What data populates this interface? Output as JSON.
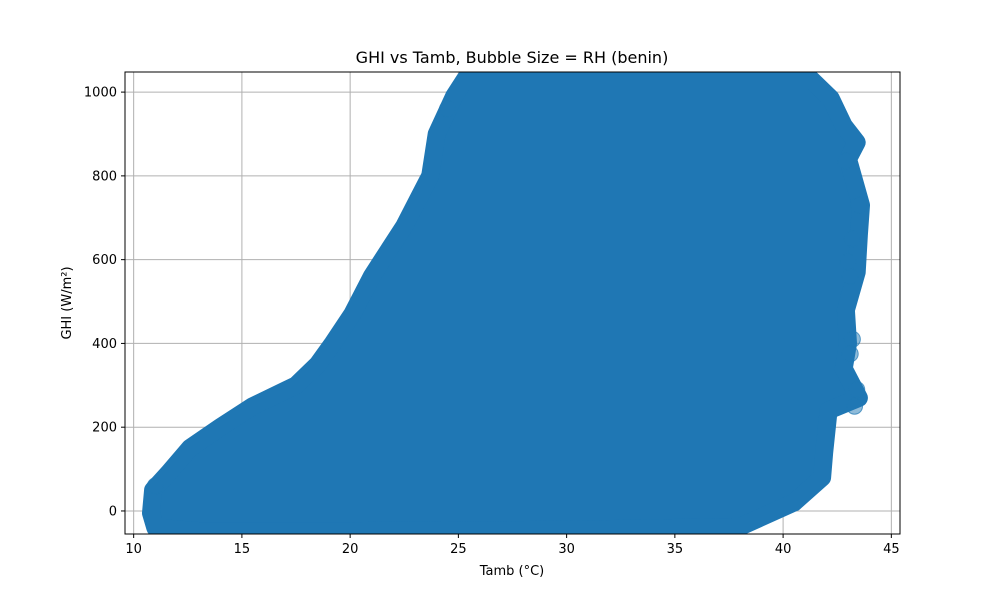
{
  "chart_data": {
    "type": "scatter",
    "title": "GHI vs Tamb, Bubble Size = RH (benin)",
    "xlabel": "Tamb (°C)",
    "ylabel": "GHI (W/m²)",
    "xlim": [
      9.6,
      45.4
    ],
    "ylim": [
      -55,
      1048
    ],
    "xticks": [
      10,
      15,
      20,
      25,
      30,
      35,
      40,
      45
    ],
    "yticks": [
      0,
      200,
      400,
      600,
      800,
      1000
    ],
    "grid": true,
    "legend": "none",
    "marker_color": "#1f77b4",
    "marker_alpha": 0.5,
    "envelope": {
      "left_edge": [
        [
          10.8,
          -5
        ],
        [
          10.9,
          50
        ],
        [
          11.6,
          90
        ],
        [
          12.6,
          150
        ],
        [
          14.0,
          200
        ],
        [
          15.5,
          250
        ],
        [
          17.5,
          300
        ],
        [
          18.5,
          350
        ],
        [
          19.2,
          400
        ],
        [
          20.1,
          470
        ],
        [
          21.0,
          560
        ],
        [
          21.5,
          600
        ],
        [
          22.5,
          680
        ],
        [
          23.2,
          750
        ],
        [
          23.7,
          800
        ],
        [
          24.0,
          900
        ],
        [
          24.8,
          990
        ],
        [
          25.3,
          1030
        ]
      ],
      "right_edge": [
        [
          41.3,
          1030
        ],
        [
          42.2,
          985
        ],
        [
          42.8,
          920
        ],
        [
          43.4,
          880
        ],
        [
          43.0,
          840
        ],
        [
          43.6,
          730
        ],
        [
          43.5,
          660
        ],
        [
          43.4,
          570
        ],
        [
          42.9,
          480
        ],
        [
          43.0,
          400
        ],
        [
          42.8,
          340
        ],
        [
          43.5,
          270
        ],
        [
          42.1,
          240
        ],
        [
          41.9,
          140
        ],
        [
          41.8,
          80
        ],
        [
          40.5,
          20
        ],
        [
          38.0,
          -38
        ],
        [
          30.0,
          -45
        ],
        [
          20.0,
          -48
        ],
        [
          13.0,
          -48
        ],
        [
          11.0,
          -40
        ]
      ]
    },
    "outlier_points": [
      [
        42.9,
        836
      ],
      [
        43.5,
        730
      ],
      [
        43.2,
        650
      ],
      [
        43.1,
        560
      ],
      [
        43.0,
        595
      ],
      [
        43.2,
        410
      ],
      [
        43.1,
        375
      ],
      [
        43.3,
        250
      ],
      [
        43.4,
        290
      ],
      [
        11.0,
        60
      ],
      [
        24.5,
        960
      ]
    ]
  }
}
